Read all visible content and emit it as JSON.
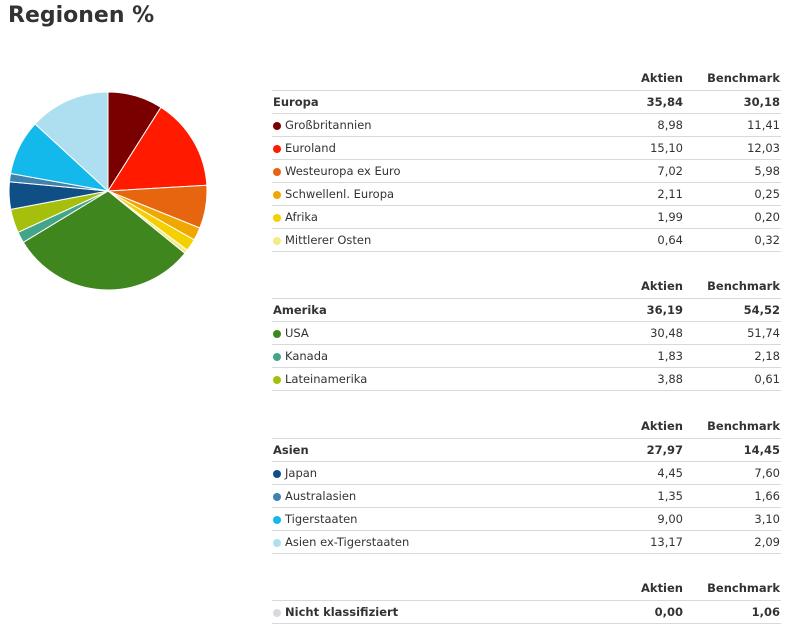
{
  "title": "Regionen %",
  "columns": {
    "aktien": "Aktien",
    "benchmark": "Benchmark"
  },
  "chart_data": {
    "type": "pie",
    "slices": [
      {
        "label": "Großbritannien",
        "value": 8.98,
        "color": "#7a0000"
      },
      {
        "label": "Euroland",
        "value": 15.1,
        "color": "#ff1a00"
      },
      {
        "label": "Westeuropa ex Euro",
        "value": 7.02,
        "color": "#e8650f"
      },
      {
        "label": "Schwellenl. Europa",
        "value": 2.11,
        "color": "#f0a800"
      },
      {
        "label": "Afrika",
        "value": 1.99,
        "color": "#f5d000"
      },
      {
        "label": "Mittlerer Osten",
        "value": 0.64,
        "color": "#f2ec82"
      },
      {
        "label": "USA",
        "value": 30.48,
        "color": "#3e861d"
      },
      {
        "label": "Kanada",
        "value": 1.83,
        "color": "#42a58a"
      },
      {
        "label": "Lateinamerika",
        "value": 3.88,
        "color": "#a5bf0c"
      },
      {
        "label": "Japan",
        "value": 4.45,
        "color": "#0f4f86"
      },
      {
        "label": "Australasien",
        "value": 1.35,
        "color": "#3f82ae"
      },
      {
        "label": "Tigerstaaten",
        "value": 9.0,
        "color": "#12b9ea"
      },
      {
        "label": "Asien ex-Tigerstaaten",
        "value": 13.17,
        "color": "#aedff0"
      },
      {
        "label": "Nicht klassifiziert",
        "value": 0.0,
        "color": "#d8d8e0"
      }
    ]
  },
  "groups": [
    {
      "name": "Europa",
      "aktien": "35,84",
      "benchmark": "30,18",
      "items": [
        {
          "label": "Großbritannien",
          "aktien": "8,98",
          "benchmark": "11,41",
          "color": "#7a0000"
        },
        {
          "label": "Euroland",
          "aktien": "15,10",
          "benchmark": "12,03",
          "color": "#ff1a00"
        },
        {
          "label": "Westeuropa ex Euro",
          "aktien": "7,02",
          "benchmark": "5,98",
          "color": "#e8650f"
        },
        {
          "label": "Schwellenl. Europa",
          "aktien": "2,11",
          "benchmark": "0,25",
          "color": "#f0a800"
        },
        {
          "label": "Afrika",
          "aktien": "1,99",
          "benchmark": "0,20",
          "color": "#f5d000"
        },
        {
          "label": "Mittlerer Osten",
          "aktien": "0,64",
          "benchmark": "0,32",
          "color": "#f2ec82"
        }
      ]
    },
    {
      "name": "Amerika",
      "aktien": "36,19",
      "benchmark": "54,52",
      "items": [
        {
          "label": "USA",
          "aktien": "30,48",
          "benchmark": "51,74",
          "color": "#3e861d"
        },
        {
          "label": "Kanada",
          "aktien": "1,83",
          "benchmark": "2,18",
          "color": "#42a58a"
        },
        {
          "label": "Lateinamerika",
          "aktien": "3,88",
          "benchmark": "0,61",
          "color": "#a5bf0c"
        }
      ]
    },
    {
      "name": "Asien",
      "aktien": "27,97",
      "benchmark": "14,45",
      "items": [
        {
          "label": "Japan",
          "aktien": "4,45",
          "benchmark": "7,60",
          "color": "#0f4f86"
        },
        {
          "label": "Australasien",
          "aktien": "1,35",
          "benchmark": "1,66",
          "color": "#3f82ae"
        },
        {
          "label": "Tigerstaaten",
          "aktien": "9,00",
          "benchmark": "3,10",
          "color": "#12b9ea"
        },
        {
          "label": "Asien ex-Tigerstaaten",
          "aktien": "13,17",
          "benchmark": "2,09",
          "color": "#aedff0"
        }
      ]
    },
    {
      "name": "",
      "aktien": "",
      "benchmark": "",
      "items": [
        {
          "label": "Nicht klassifiziert",
          "aktien": "0,00",
          "benchmark": "1,06",
          "color": "#d8d8e0",
          "bold": true
        }
      ]
    }
  ]
}
